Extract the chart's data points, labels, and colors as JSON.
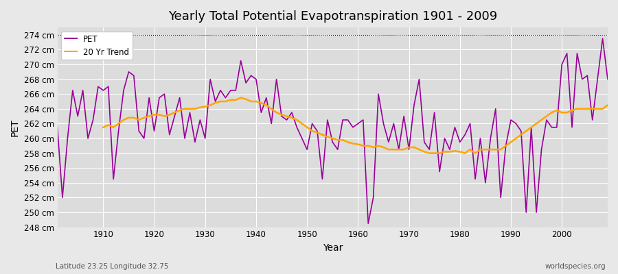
{
  "title": "Yearly Total Potential Evapotranspiration 1901 - 2009",
  "xlabel": "Year",
  "ylabel": "PET",
  "lat_lon_label": "Latitude 23.25 Longitude 32.75",
  "watermark": "worldspecies.org",
  "ylim": [
    248,
    275
  ],
  "yticks": [
    248,
    250,
    252,
    254,
    256,
    258,
    260,
    262,
    264,
    266,
    268,
    270,
    272,
    274
  ],
  "ytick_labels": [
    "248 cm",
    "250 cm",
    "252 cm",
    "254 cm",
    "256 cm",
    "258 cm",
    "260 cm",
    "262 cm",
    "264 cm",
    "266 cm",
    "268 cm",
    "270 cm",
    "272 cm",
    "274 cm"
  ],
  "pet_color": "#990099",
  "trend_color": "#FFA500",
  "background_color": "#E8E8E8",
  "plot_bg_color": "#DCDCDC",
  "years": [
    1901,
    1902,
    1903,
    1904,
    1905,
    1906,
    1907,
    1908,
    1909,
    1910,
    1911,
    1912,
    1913,
    1914,
    1915,
    1916,
    1917,
    1918,
    1919,
    1920,
    1921,
    1922,
    1923,
    1924,
    1925,
    1926,
    1927,
    1928,
    1929,
    1930,
    1931,
    1932,
    1933,
    1934,
    1935,
    1936,
    1937,
    1938,
    1939,
    1940,
    1941,
    1942,
    1943,
    1944,
    1945,
    1946,
    1947,
    1948,
    1949,
    1950,
    1951,
    1952,
    1953,
    1954,
    1955,
    1956,
    1957,
    1958,
    1959,
    1960,
    1961,
    1962,
    1963,
    1964,
    1965,
    1966,
    1967,
    1968,
    1969,
    1970,
    1971,
    1972,
    1973,
    1974,
    1975,
    1976,
    1977,
    1978,
    1979,
    1980,
    1981,
    1982,
    1983,
    1984,
    1985,
    1986,
    1987,
    1988,
    1989,
    1990,
    1991,
    1992,
    1993,
    1994,
    1995,
    1996,
    1997,
    1998,
    1999,
    2000,
    2001,
    2002,
    2003,
    2004,
    2005,
    2006,
    2007,
    2008,
    2009
  ],
  "pet_values": [
    261.5,
    252.0,
    260.0,
    266.5,
    263.0,
    266.5,
    260.0,
    262.5,
    267.0,
    266.5,
    267.0,
    254.5,
    261.0,
    266.5,
    269.0,
    268.5,
    261.0,
    260.0,
    265.5,
    261.0,
    265.5,
    266.0,
    260.5,
    263.0,
    265.5,
    260.0,
    263.5,
    259.5,
    262.5,
    260.0,
    268.0,
    265.0,
    266.5,
    265.5,
    266.5,
    266.5,
    270.5,
    267.5,
    268.5,
    268.0,
    263.5,
    265.5,
    262.0,
    268.0,
    263.0,
    262.5,
    263.5,
    261.5,
    260.0,
    258.5,
    262.0,
    261.0,
    254.5,
    262.5,
    259.5,
    258.5,
    262.5,
    262.5,
    261.5,
    262.0,
    262.5,
    248.5,
    252.0,
    266.0,
    262.0,
    259.5,
    262.0,
    258.5,
    263.0,
    258.5,
    264.5,
    268.0,
    259.5,
    258.5,
    263.5,
    255.5,
    260.0,
    258.5,
    261.5,
    259.5,
    260.5,
    262.0,
    254.5,
    260.0,
    254.0,
    260.0,
    264.0,
    252.0,
    259.0,
    262.5,
    262.0,
    261.0,
    250.0,
    261.5,
    250.0,
    258.5,
    262.5,
    261.5,
    261.5,
    270.0,
    271.5,
    261.5,
    271.5,
    268.0,
    268.5,
    262.5,
    268.0,
    273.5,
    268.0
  ],
  "trend_years": [
    1910,
    1911,
    1912,
    1913,
    1914,
    1915,
    1916,
    1917,
    1918,
    1919,
    1920,
    1921,
    1922,
    1923,
    1924,
    1925,
    1926,
    1927,
    1928,
    1929,
    1930,
    1931,
    1932,
    1933,
    1934,
    1935,
    1936,
    1937,
    1938,
    1939,
    1940,
    1941,
    1942,
    1943,
    1944,
    1945,
    1946,
    1947,
    1948,
    1949,
    1950,
    1951,
    1952,
    1953,
    1954,
    1955,
    1956,
    1957,
    1958,
    1959,
    1960,
    1961,
    1962,
    1963,
    1964,
    1965,
    1966,
    1967,
    1968,
    1969,
    1970,
    1971,
    1972,
    1973,
    1974,
    1975,
    1976,
    1977,
    1978,
    1979,
    1980,
    1981,
    1982,
    1983,
    1984,
    1985,
    1986,
    1987,
    1988,
    1989,
    1990,
    1991,
    1992,
    1993,
    1994,
    1995,
    1996,
    1997,
    1998,
    1999,
    2000,
    2001,
    2002,
    2003,
    2004,
    2005,
    2006,
    2007,
    2008,
    2009
  ],
  "trend_values": [
    261.5,
    261.8,
    261.5,
    262.0,
    262.5,
    262.8,
    262.8,
    262.5,
    262.8,
    263.0,
    263.2,
    263.2,
    263.0,
    263.2,
    263.5,
    263.8,
    264.0,
    264.0,
    264.0,
    264.2,
    264.3,
    264.5,
    264.8,
    265.0,
    265.0,
    265.2,
    265.2,
    265.5,
    265.3,
    265.0,
    265.0,
    264.8,
    264.5,
    264.0,
    263.5,
    263.2,
    263.0,
    262.8,
    262.5,
    262.0,
    261.5,
    261.0,
    260.8,
    260.5,
    260.2,
    260.0,
    259.8,
    259.8,
    259.5,
    259.3,
    259.2,
    259.0,
    259.0,
    258.8,
    259.0,
    258.8,
    258.5,
    258.5,
    258.5,
    258.5,
    258.8,
    258.8,
    258.5,
    258.2,
    258.0,
    258.0,
    258.0,
    258.2,
    258.2,
    258.3,
    258.2,
    258.0,
    258.5,
    258.0,
    258.5,
    258.5,
    258.5,
    258.5,
    258.5,
    259.0,
    259.5,
    260.0,
    260.5,
    261.0,
    261.5,
    262.0,
    262.5,
    263.0,
    263.5,
    263.8,
    263.5,
    263.5,
    263.8,
    264.0,
    264.0,
    264.0,
    264.0,
    264.0,
    264.0,
    264.5
  ]
}
